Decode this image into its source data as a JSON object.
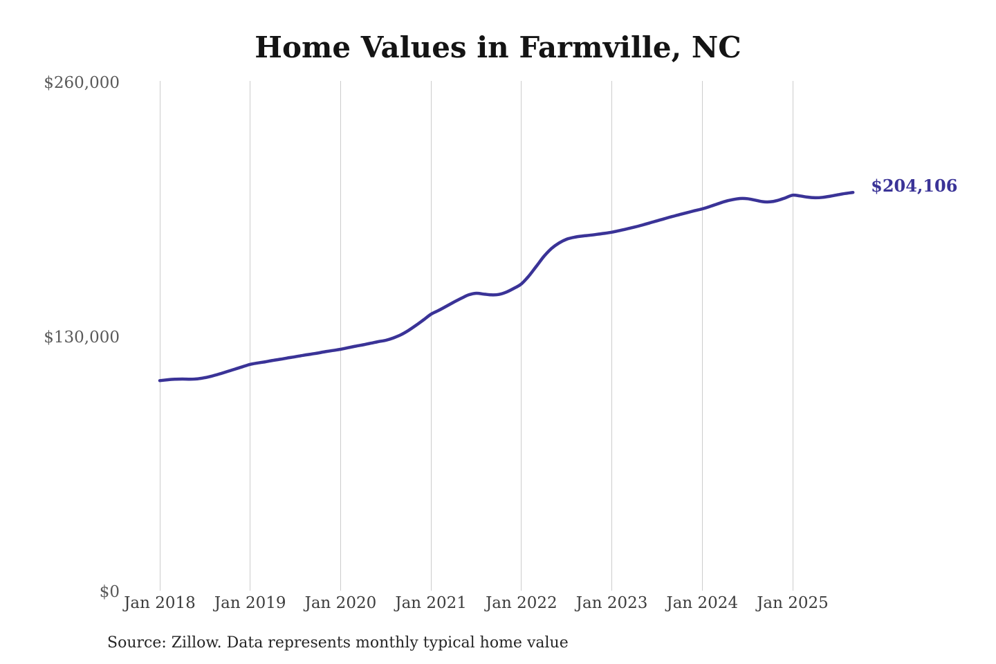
{
  "chart_data": {
    "type": "line",
    "title": "Home Values in Farmville, NC",
    "source_note": "Source: Zillow. Data represents monthly typical home value",
    "end_label": "$204,106",
    "line_color": "#3a3397",
    "grid_color": "#cccccc",
    "legend_position": "none",
    "grid": "vertical-only",
    "ylim": [
      0,
      260000
    ],
    "y_ticks": [
      {
        "label": "$0",
        "value": 0
      },
      {
        "label": "$130,000",
        "value": 130000
      },
      {
        "label": "$260,000",
        "value": 260000
      }
    ],
    "x_ticks": [
      {
        "label": "Jan 2018",
        "month_index": 0
      },
      {
        "label": "Jan 2019",
        "month_index": 12
      },
      {
        "label": "Jan 2020",
        "month_index": 24
      },
      {
        "label": "Jan 2021",
        "month_index": 36
      },
      {
        "label": "Jan 2022",
        "month_index": 48
      },
      {
        "label": "Jan 2023",
        "month_index": 60
      },
      {
        "label": "Jan 2024",
        "month_index": 72
      },
      {
        "label": "Jan 2025",
        "month_index": 84
      }
    ],
    "x": [
      "2018-01",
      "2018-02",
      "2018-03",
      "2018-04",
      "2018-05",
      "2018-06",
      "2018-07",
      "2018-08",
      "2018-09",
      "2018-10",
      "2018-11",
      "2018-12",
      "2019-01",
      "2019-02",
      "2019-03",
      "2019-04",
      "2019-05",
      "2019-06",
      "2019-07",
      "2019-08",
      "2019-09",
      "2019-10",
      "2019-11",
      "2019-12",
      "2020-01",
      "2020-02",
      "2020-03",
      "2020-04",
      "2020-05",
      "2020-06",
      "2020-07",
      "2020-08",
      "2020-09",
      "2020-10",
      "2020-11",
      "2020-12",
      "2021-01",
      "2021-02",
      "2021-03",
      "2021-04",
      "2021-05",
      "2021-06",
      "2021-07",
      "2021-08",
      "2021-09",
      "2021-10",
      "2021-11",
      "2021-12",
      "2022-01",
      "2022-02",
      "2022-03",
      "2022-04",
      "2022-05",
      "2022-06",
      "2022-07",
      "2022-08",
      "2022-09",
      "2022-10",
      "2022-11",
      "2022-12",
      "2023-01",
      "2023-02",
      "2023-03",
      "2023-04",
      "2023-05",
      "2023-06",
      "2023-07",
      "2023-08",
      "2023-09",
      "2023-10",
      "2023-11",
      "2023-12",
      "2024-01",
      "2024-02",
      "2024-03",
      "2024-04",
      "2024-05",
      "2024-06",
      "2024-07",
      "2024-08",
      "2024-09",
      "2024-10",
      "2024-11",
      "2024-12",
      "2025-01",
      "2025-02",
      "2025-03",
      "2025-04",
      "2025-05",
      "2025-06",
      "2025-07",
      "2025-08",
      "2025-09"
    ],
    "values": [
      108000,
      108400,
      108700,
      108800,
      108700,
      108900,
      109500,
      110400,
      111500,
      112700,
      113900,
      115100,
      116300,
      117000,
      117600,
      118300,
      118900,
      119600,
      120200,
      120900,
      121500,
      122100,
      122800,
      123400,
      124000,
      124800,
      125600,
      126300,
      127100,
      127900,
      128600,
      129800,
      131400,
      133600,
      136200,
      139000,
      141900,
      143800,
      145900,
      148000,
      150000,
      151800,
      152600,
      152200,
      151800,
      152000,
      153200,
      155100,
      157400,
      161500,
      166500,
      171500,
      175500,
      178300,
      180200,
      181200,
      181800,
      182200,
      182700,
      183200,
      183800,
      184600,
      185500,
      186400,
      187400,
      188500,
      189600,
      190700,
      191800,
      192800,
      193800,
      194800,
      195700,
      196900,
      198200,
      199500,
      200400,
      201000,
      200900,
      200200,
      199400,
      199300,
      200000,
      201300,
      202700,
      202300,
      201700,
      201400,
      201600,
      202200,
      202900,
      203600,
      204106
    ]
  }
}
